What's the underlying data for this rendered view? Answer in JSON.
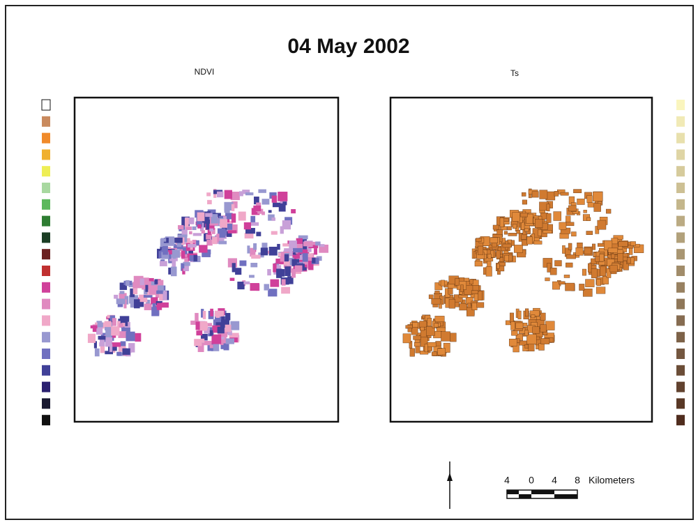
{
  "title": "04 May 2002",
  "panels": [
    {
      "title": "NDVI"
    },
    {
      "title": "Ts"
    }
  ],
  "scale_bar": {
    "labels": [
      "4",
      "0",
      "4",
      "8"
    ],
    "unit": "Kilometers"
  }
}
